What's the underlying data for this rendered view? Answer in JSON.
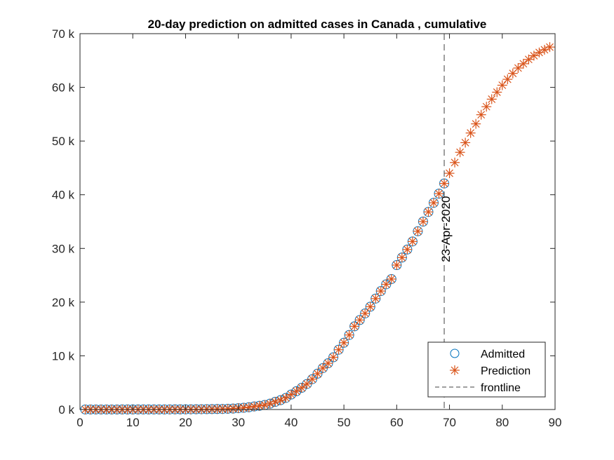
{
  "chart_data": {
    "type": "scatter",
    "title": "20-day prediction on admitted cases in Canada , cumulative",
    "xlabel": "",
    "ylabel": "",
    "xlim": [
      0,
      90
    ],
    "ylim": [
      0,
      70000
    ],
    "xticks": [
      0,
      10,
      20,
      30,
      40,
      50,
      60,
      70,
      80,
      90
    ],
    "xtick_labels": [
      "0",
      "10",
      "20",
      "30",
      "40",
      "50",
      "60",
      "70",
      "80",
      "90"
    ],
    "yticks": [
      0,
      10000,
      20000,
      30000,
      40000,
      50000,
      60000,
      70000
    ],
    "ytick_labels": [
      "0 k",
      "10 k",
      "20 k",
      "30 k",
      "40 k",
      "50 k",
      "60 k",
      "70 k"
    ],
    "grid": false,
    "legend_placement": "bottom-right",
    "series": [
      {
        "name": "Admitted",
        "marker": "circle",
        "color": "#0072BD",
        "x_start": 1,
        "values": [
          8,
          8,
          8,
          8,
          8,
          8,
          8,
          9,
          9,
          9,
          10,
          11,
          11,
          12,
          13,
          14,
          20,
          27,
          30,
          33,
          37,
          49,
          54,
          64,
          77,
          93,
          103,
          138,
          176,
          249,
          324,
          424,
          569,
          690,
          846,
          1087,
          1430,
          1739,
          2158,
          2792,
          3409,
          4043,
          4757,
          5655,
          6671,
          7708,
          8612,
          9731,
          11135,
          12437,
          13882,
          15496,
          16667,
          17897,
          19141,
          20654,
          22059,
          23316,
          24299,
          26900,
          28300,
          29800,
          31300,
          33200,
          35000,
          36800,
          38500,
          40200,
          42100
        ]
      },
      {
        "name": "Prediction",
        "marker": "asterisk",
        "color": "#D95319",
        "x_start": 1,
        "values": [
          8,
          8,
          8,
          8,
          8,
          8,
          8,
          9,
          9,
          9,
          10,
          11,
          11,
          12,
          13,
          14,
          20,
          27,
          30,
          33,
          37,
          49,
          54,
          64,
          77,
          93,
          103,
          138,
          176,
          249,
          324,
          424,
          569,
          690,
          846,
          1087,
          1430,
          1739,
          2158,
          2792,
          3409,
          4043,
          4757,
          5655,
          6671,
          7708,
          8612,
          9731,
          11135,
          12437,
          13882,
          15496,
          16667,
          17897,
          19141,
          20654,
          22059,
          23316,
          24299,
          26900,
          28300,
          29800,
          31300,
          33200,
          35000,
          36800,
          38500,
          40200,
          42100,
          44000,
          46000,
          47900,
          49700,
          51500,
          53200,
          54900,
          56400,
          57800,
          59100,
          60400,
          61500,
          62600,
          63600,
          64400,
          65200,
          65900,
          66500,
          67000,
          67500
        ]
      }
    ],
    "frontline": {
      "name": "frontline",
      "x": 69,
      "color": "#404040",
      "style": "dashed",
      "label": "23-Apr-2020"
    }
  }
}
